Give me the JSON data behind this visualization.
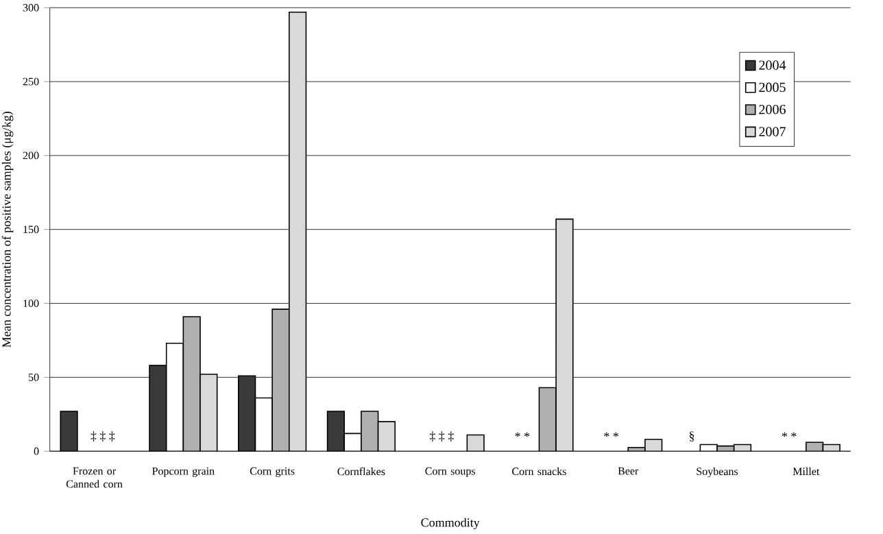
{
  "chart_data": {
    "type": "bar",
    "xlabel": "Commodity",
    "ylabel": "Mean concentration of positive samples (μg/kg)",
    "categories": [
      "Frozen or Canned corn",
      "Popcorn grain",
      "Corn grits",
      "Cornflakes",
      "Corn soups",
      "Corn snacks",
      "Beer",
      "Soybeans",
      "Millet"
    ],
    "series": [
      {
        "name": "2004",
        "color": "#3a3a3a",
        "values": [
          27,
          58,
          51,
          27,
          null,
          null,
          null,
          null,
          null
        ]
      },
      {
        "name": "2005",
        "color": "#ffffff",
        "values": [
          null,
          73,
          36,
          12,
          null,
          null,
          null,
          4.5,
          null
        ]
      },
      {
        "name": "2006",
        "color": "#b0b0b0",
        "values": [
          null,
          91,
          96,
          27,
          null,
          43,
          2.5,
          3.5,
          6
        ]
      },
      {
        "name": "2007",
        "color": "#d9d9d9",
        "values": [
          null,
          52,
          297,
          20,
          11,
          157,
          8,
          4.5,
          4.5
        ]
      }
    ],
    "ylim": [
      0,
      300
    ],
    "yticks": [
      0,
      50,
      100,
      150,
      200,
      250,
      300
    ],
    "grid": "y",
    "legend": "top right",
    "annotations": [
      "‡ ‡ ‡",
      "‡ ‡ ‡",
      "* *",
      "* *",
      "§",
      "* *"
    ]
  }
}
